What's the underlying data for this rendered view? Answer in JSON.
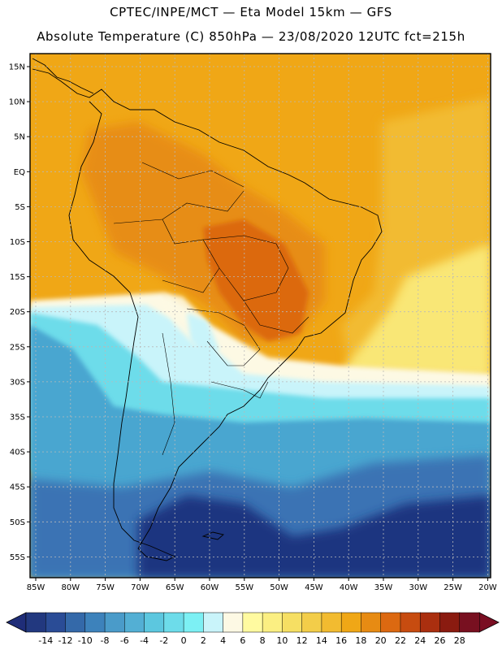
{
  "header": {
    "line1": "CPTEC/INPE/MCT —  Eta Model 15km — GFS",
    "line2": "Absolute Temperature (C) 850hPa — 23/08/2020 12UTC fct=215h"
  },
  "axes": {
    "lat_labels": [
      "15N",
      "10N",
      "5N",
      "EQ",
      "5S",
      "10S",
      "15S",
      "20S",
      "25S",
      "30S",
      "35S",
      "40S",
      "45S",
      "50S",
      "55S"
    ],
    "lon_labels": [
      "85W",
      "80W",
      "75W",
      "70W",
      "65W",
      "60W",
      "55W",
      "50W",
      "45W",
      "40W",
      "35W",
      "30W",
      "25W",
      "20W"
    ]
  },
  "colorbar": {
    "levels": [
      "-14",
      "-12",
      "-10",
      "-8",
      "-6",
      "-4",
      "-2",
      "0",
      "2",
      "4",
      "6",
      "8",
      "10",
      "12",
      "14",
      "16",
      "18",
      "20",
      "22",
      "24",
      "26",
      "28"
    ],
    "colors": [
      "#22387f",
      "#2a4c96",
      "#3469a9",
      "#3d82bb",
      "#4a9bc9",
      "#53afd4",
      "#5cc7df",
      "#6ddcea",
      "#7cf0f4",
      "#c9f4fa",
      "#fdf9e4",
      "#fffaa0",
      "#fbef82",
      "#f6df63",
      "#f3cd49",
      "#f2bb30",
      "#f0a716",
      "#e78b13",
      "#dc6911",
      "#c74c10",
      "#aa2f0f",
      "#8a1b10",
      "#781020"
    ],
    "under_color": "#1f2d78",
    "over_color": "#7a0e22"
  },
  "map_colors": {
    "ocean_south_deep": "#1e3580",
    "ocean_south_mid": "#3a73b4",
    "ocean_south_light": "#4aa6d0",
    "cold_tongue": "#6ddcea",
    "front_pale": "#c9f4fa",
    "front_white": "#fdf9e4",
    "front_yellow": "#fbef82",
    "tropical_base": "#f0a716",
    "tropical_light": "#f2bb30",
    "warm_core": "#e78b13",
    "hot_core": "#dc6911",
    "coast": "#000000"
  }
}
